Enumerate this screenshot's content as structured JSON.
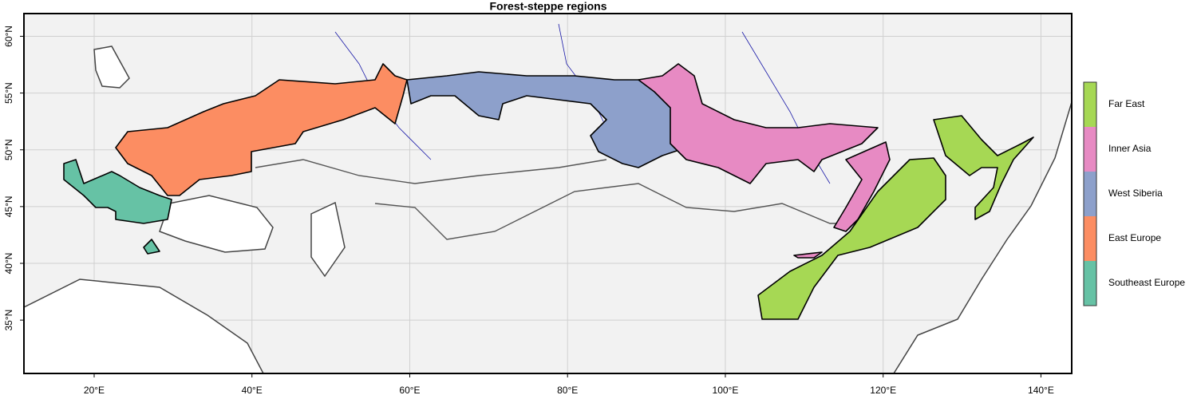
{
  "title": "Forest-steppe regions",
  "map": {
    "xlim": [
      11.1,
      143.9
    ],
    "ylim": [
      30.3,
      62.0
    ],
    "xticks": [
      {
        "value": 20,
        "label": "20°E"
      },
      {
        "value": 40,
        "label": "40°E"
      },
      {
        "value": 60,
        "label": "60°E"
      },
      {
        "value": 80,
        "label": "80°E"
      },
      {
        "value": 100,
        "label": "100°E"
      },
      {
        "value": 120,
        "label": "120°E"
      },
      {
        "value": 140,
        "label": "140°E"
      }
    ],
    "yticks": [
      {
        "value": 35,
        "label": "35°N"
      },
      {
        "value": 40,
        "label": "40°N"
      },
      {
        "value": 45,
        "label": "45°N"
      },
      {
        "value": 50,
        "label": "50°N"
      },
      {
        "value": 55,
        "label": "55°N"
      },
      {
        "value": 60,
        "label": "60°N"
      }
    ],
    "grid": true
  },
  "legend": [
    {
      "name": "Far East",
      "color": "#a6d854"
    },
    {
      "name": "Inner Asia",
      "color": "#e78ac3"
    },
    {
      "name": "West Siberia",
      "color": "#8da0cb"
    },
    {
      "name": "East Europe",
      "color": "#fc8d62"
    },
    {
      "name": "Southeast Europe",
      "color": "#66c2a5"
    }
  ]
}
